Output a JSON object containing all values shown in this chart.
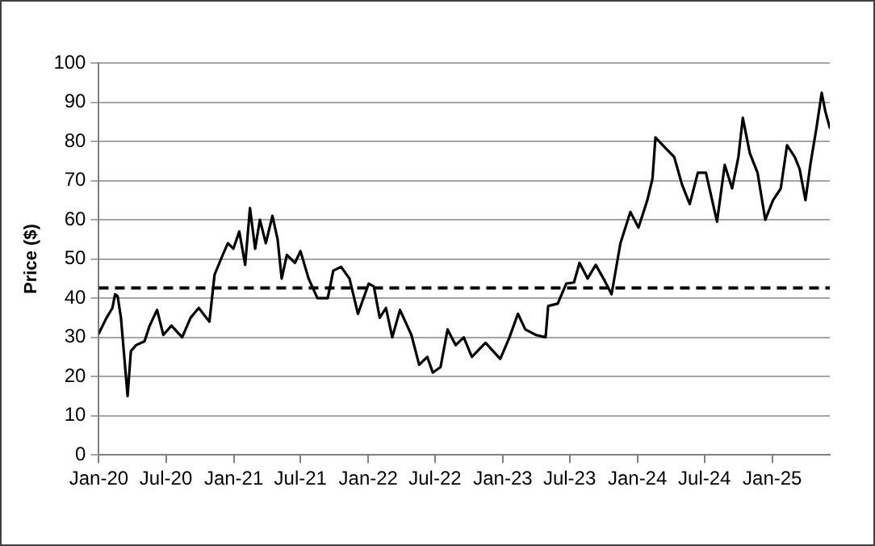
{
  "chart_data": {
    "type": "line",
    "ylabel": "Price ($)",
    "xlim": [
      "2020-01-01",
      "2025-06-06"
    ],
    "xticks": [
      {
        "value": "2020-01-01",
        "label": "Jan-20"
      },
      {
        "value": "2020-07-01",
        "label": "Jul-20"
      },
      {
        "value": "2021-01-01",
        "label": "Jan-21"
      },
      {
        "value": "2021-07-01",
        "label": "Jul-21"
      },
      {
        "value": "2022-01-01",
        "label": "Jan-22"
      },
      {
        "value": "2022-07-01",
        "label": "Jul-22"
      },
      {
        "value": "2023-01-01",
        "label": "Jan-23"
      },
      {
        "value": "2023-07-01",
        "label": "Jul-23"
      },
      {
        "value": "2024-01-01",
        "label": "Jan-24"
      },
      {
        "value": "2024-07-01",
        "label": "Jul-24"
      },
      {
        "value": "2025-01-01",
        "label": "Jan-25"
      }
    ],
    "ylim": [
      0,
      100
    ],
    "yticks": [
      0,
      10,
      20,
      30,
      40,
      50,
      60,
      70,
      80,
      90,
      100
    ],
    "grid": "y",
    "marker": "none",
    "line_style": "solid",
    "ref_lines": [
      {
        "axis": "y",
        "value": 42.6,
        "color": "#000000",
        "line_style": "dashed"
      }
    ],
    "series": [
      {
        "color": "#000000",
        "x": [
          "2020-01-01",
          "2020-01-22",
          "2020-02-07",
          "2020-02-14",
          "2020-02-21",
          "2020-03-01",
          "2020-03-10",
          "2020-03-19",
          "2020-03-28",
          "2020-04-11",
          "2020-05-04",
          "2020-05-18",
          "2020-06-07",
          "2020-06-24",
          "2020-07-16",
          "2020-08-14",
          "2020-09-06",
          "2020-09-28",
          "2020-10-27",
          "2020-11-10",
          "2020-12-02",
          "2020-12-16",
          "2020-12-31",
          "2021-01-16",
          "2021-02-01",
          "2021-02-14",
          "2021-02-28",
          "2021-03-13",
          "2021-03-29",
          "2021-04-16",
          "2021-04-30",
          "2021-05-11",
          "2021-05-25",
          "2021-06-16",
          "2021-07-01",
          "2021-07-23",
          "2021-08-16",
          "2021-09-13",
          "2021-09-28",
          "2021-10-19",
          "2021-11-11",
          "2021-12-04",
          "2022-01-02",
          "2022-01-16",
          "2022-02-01",
          "2022-02-18",
          "2022-03-07",
          "2022-03-28",
          "2022-04-28",
          "2022-05-19",
          "2022-06-10",
          "2022-06-25",
          "2022-07-16",
          "2022-08-04",
          "2022-08-26",
          "2022-09-17",
          "2022-10-09",
          "2022-11-15",
          "2022-12-25",
          "2023-01-19",
          "2023-02-11",
          "2023-03-03",
          "2023-04-01",
          "2023-04-27",
          "2023-05-04",
          "2023-05-30",
          "2023-06-22",
          "2023-07-13",
          "2023-07-28",
          "2023-08-19",
          "2023-09-10",
          "2023-10-01",
          "2023-10-23",
          "2023-11-16",
          "2023-12-13",
          "2024-01-04",
          "2024-01-28",
          "2024-02-11",
          "2024-02-19",
          "2024-03-10",
          "2024-04-10",
          "2024-05-01",
          "2024-05-22",
          "2024-06-13",
          "2024-07-05",
          "2024-08-04",
          "2024-08-25",
          "2024-09-14",
          "2024-10-01",
          "2024-10-13",
          "2024-11-01",
          "2024-11-22",
          "2024-12-13",
          "2025-01-03",
          "2025-01-24",
          "2025-02-10",
          "2025-03-03",
          "2025-03-16",
          "2025-04-01",
          "2025-04-15",
          "2025-05-01",
          "2025-05-15",
          "2025-05-25",
          "2025-06-06"
        ],
        "values": [
          31,
          35,
          37.5,
          41,
          40.5,
          35,
          25,
          15,
          26.5,
          28,
          29,
          33,
          37,
          30.6,
          33,
          30,
          35,
          37.5,
          34,
          46,
          51,
          54,
          52.6,
          57,
          48.5,
          63,
          52.6,
          60,
          54,
          61,
          55,
          45,
          51,
          49,
          52,
          45,
          40,
          40,
          47,
          48,
          45,
          36,
          43.7,
          43,
          35,
          37.5,
          30,
          37,
          30.6,
          23,
          25,
          21,
          22.4,
          32,
          28,
          30,
          25,
          28.6,
          24.5,
          30,
          36,
          32,
          30.6,
          30,
          38,
          38.6,
          43.7,
          44,
          49,
          45,
          48.5,
          45,
          41,
          54,
          62,
          58,
          65,
          70.5,
          81,
          79,
          76,
          69,
          64,
          72,
          72,
          59.5,
          74,
          68,
          76,
          86,
          77,
          72,
          60,
          65,
          68,
          79,
          76,
          73,
          65,
          74.5,
          83.5,
          92.4,
          87.6,
          83.5
        ]
      }
    ]
  }
}
